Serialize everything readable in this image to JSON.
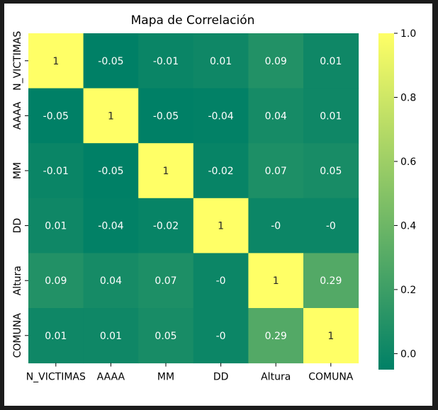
{
  "chart_data": {
    "type": "heatmap",
    "title": "Mapa de Correlación",
    "xlabel": "",
    "ylabel": "",
    "row_labels": [
      "N_VICTIMAS",
      "AAAA",
      "MM",
      "DD",
      "Altura",
      "COMUNA"
    ],
    "col_labels": [
      "N_VICTIMAS",
      "AAAA",
      "MM",
      "DD",
      "Altura",
      "COMUNA"
    ],
    "values": [
      [
        1,
        -0.05,
        -0.01,
        0.01,
        0.09,
        0.01
      ],
      [
        -0.05,
        1,
        -0.05,
        -0.04,
        0.04,
        0.01
      ],
      [
        -0.01,
        -0.05,
        1,
        -0.02,
        0.07,
        0.05
      ],
      [
        0.01,
        -0.04,
        -0.02,
        1,
        0,
        0
      ],
      [
        0.09,
        0.04,
        0.07,
        0,
        1,
        0.29
      ],
      [
        0.01,
        0.01,
        0.05,
        0,
        0.29,
        1
      ]
    ],
    "cell_labels": [
      [
        "1",
        "-0.05",
        "-0.01",
        "0.01",
        "0.09",
        "0.01"
      ],
      [
        "-0.05",
        "1",
        "-0.05",
        "-0.04",
        "0.04",
        "0.01"
      ],
      [
        "-0.01",
        "-0.05",
        "1",
        "-0.02",
        "0.07",
        "0.05"
      ],
      [
        "0.01",
        "-0.04",
        "-0.02",
        "1",
        "-0",
        "-0"
      ],
      [
        "0.09",
        "0.04",
        "0.07",
        "-0",
        "1",
        "0.29"
      ],
      [
        "0.01",
        "0.01",
        "0.05",
        "-0",
        "0.29",
        "1"
      ]
    ],
    "colormap": "summer",
    "colormap_low_color": "#008066",
    "colormap_high_color": "#ffff66",
    "vmin": -0.05,
    "vmax": 1.0,
    "colorbar_ticks": [
      0.0,
      0.2,
      0.4,
      0.6,
      0.8,
      1.0
    ],
    "colorbar_tick_labels": [
      "0.0",
      "0.2",
      "0.4",
      "0.6",
      "0.8",
      "1.0"
    ],
    "grid": false
  }
}
